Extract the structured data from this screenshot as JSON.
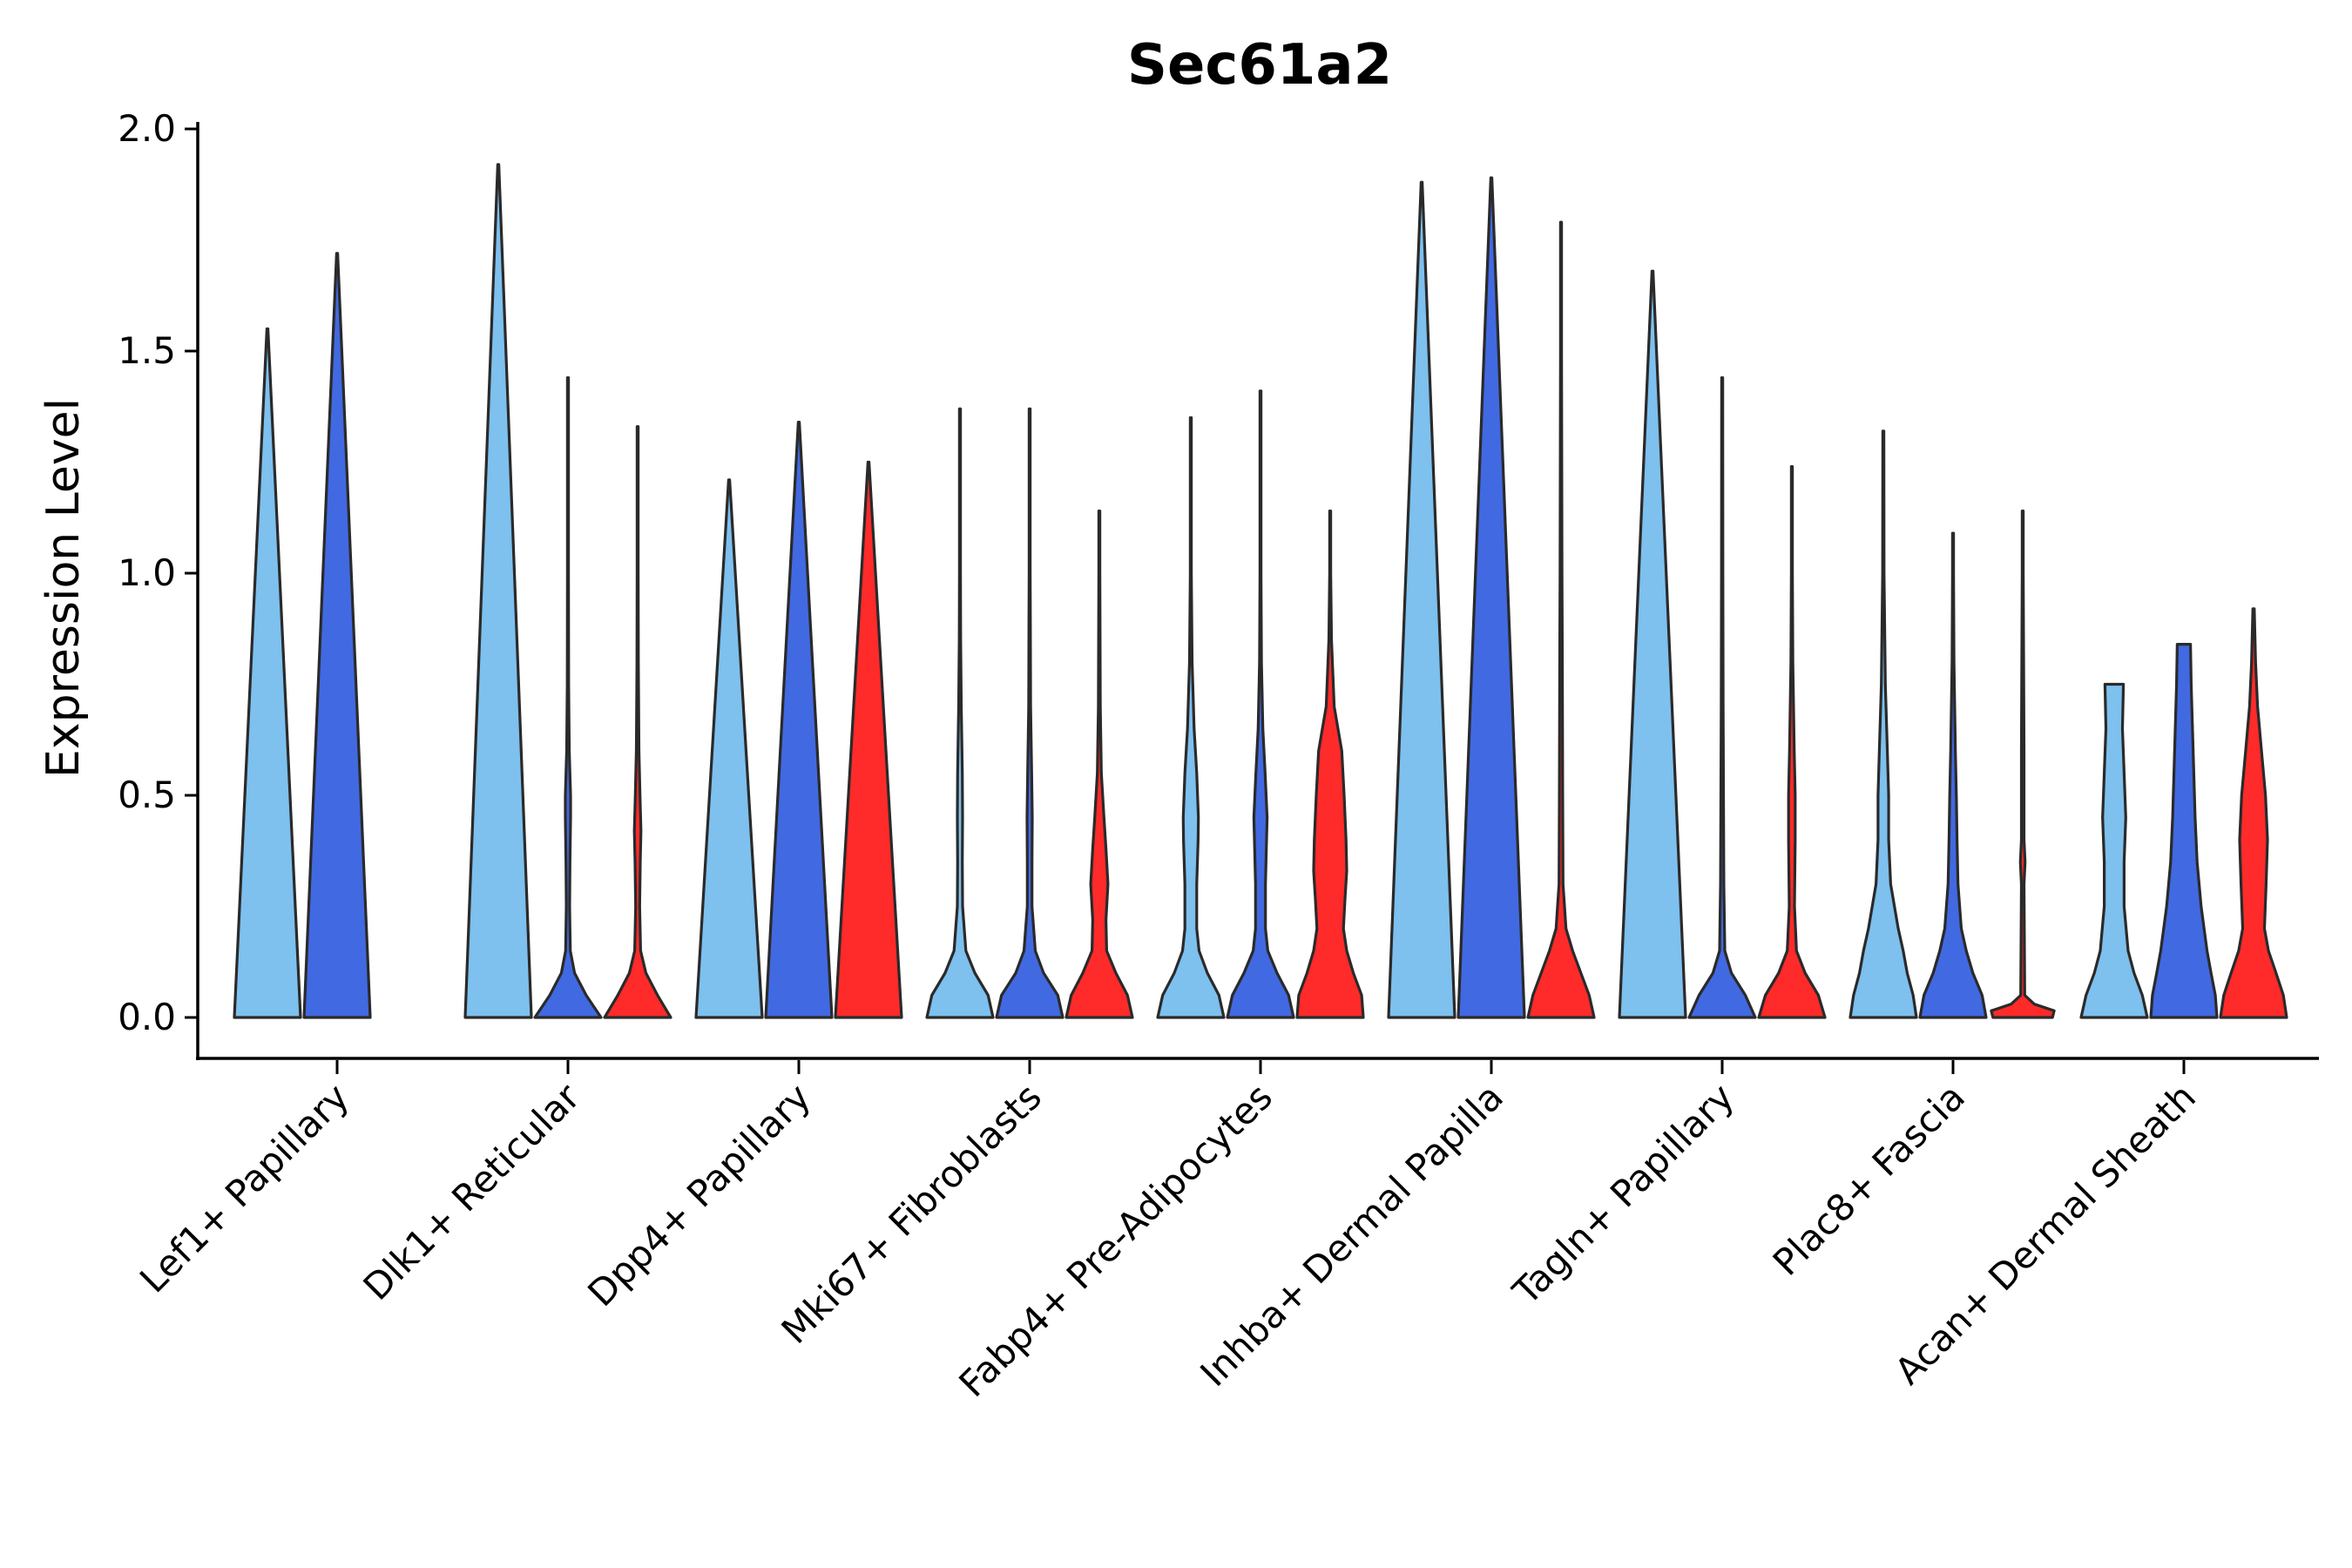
{
  "chart_data": {
    "type": "violin",
    "title": "Sec61a2",
    "xlabel": "",
    "ylabel": "Expression Level",
    "ylim": [
      -0.1,
      2.0
    ],
    "yticks": [
      0.0,
      0.5,
      1.0,
      1.5,
      2.0
    ],
    "ytick_labels": [
      "0.0",
      "0.5",
      "1.0",
      "1.5",
      "2.0"
    ],
    "grid": false,
    "legend": "none",
    "group_colors": [
      "#7ec0ee",
      "#4169e1",
      "#ff2a2a"
    ],
    "categories": [
      "Lef1+ Papillary",
      "Dlk1+ Reticular",
      "Dpp4+ Papillary",
      "Mki67+ Fibroblasts",
      "Fabp4+ Pre-Adipocytes",
      "Inhba+ Dermal Papilla",
      "Tagln+ Papillary",
      "Plac8+ Fascia",
      "Acan+ Dermal Sheath"
    ],
    "violins": [
      [
        {
          "max": 1.55,
          "profile": [
            [
              0.0,
              1.0
            ]
          ]
        },
        {
          "max": 1.72,
          "profile": [
            [
              0.0,
              1.0
            ]
          ]
        },
        null
      ],
      [
        {
          "max": 1.92,
          "profile": [
            [
              0.0,
              1.0
            ]
          ]
        },
        {
          "max": 1.44,
          "profile": [
            [
              0.0,
              1.0
            ],
            [
              0.05,
              0.55
            ],
            [
              0.1,
              0.2
            ],
            [
              0.15,
              0.07
            ],
            [
              0.25,
              0.05
            ],
            [
              0.35,
              0.06
            ],
            [
              0.45,
              0.08
            ],
            [
              0.5,
              0.08
            ],
            [
              0.6,
              0.04
            ],
            [
              0.75,
              0.02
            ],
            [
              1.0,
              0.015
            ]
          ]
        },
        {
          "max": 1.33,
          "profile": [
            [
              0.0,
              1.0
            ],
            [
              0.05,
              0.6
            ],
            [
              0.1,
              0.25
            ],
            [
              0.15,
              0.09
            ],
            [
              0.25,
              0.06
            ],
            [
              0.35,
              0.08
            ],
            [
              0.42,
              0.1
            ],
            [
              0.5,
              0.07
            ],
            [
              0.6,
              0.04
            ],
            [
              0.8,
              0.02
            ],
            [
              1.0,
              0.015
            ]
          ]
        }
      ],
      [
        {
          "max": 1.21,
          "profile": [
            [
              0.0,
              1.0
            ]
          ]
        },
        {
          "max": 1.34,
          "profile": [
            [
              0.0,
              1.0
            ]
          ]
        },
        {
          "max": 1.25,
          "profile": [
            [
              0.0,
              1.0
            ]
          ]
        }
      ],
      [
        {
          "max": 1.37,
          "profile": [
            [
              0.0,
              1.0
            ],
            [
              0.05,
              0.85
            ],
            [
              0.1,
              0.45
            ],
            [
              0.15,
              0.18
            ],
            [
              0.25,
              0.08
            ],
            [
              0.35,
              0.07
            ],
            [
              0.45,
              0.08
            ],
            [
              0.55,
              0.07
            ],
            [
              0.7,
              0.04
            ],
            [
              0.85,
              0.02
            ],
            [
              1.0,
              0.01
            ]
          ]
        },
        {
          "max": 1.37,
          "profile": [
            [
              0.0,
              1.0
            ],
            [
              0.05,
              0.85
            ],
            [
              0.1,
              0.42
            ],
            [
              0.15,
              0.17
            ],
            [
              0.25,
              0.07
            ],
            [
              0.35,
              0.07
            ],
            [
              0.45,
              0.08
            ],
            [
              0.55,
              0.06
            ],
            [
              0.7,
              0.03
            ],
            [
              0.9,
              0.02
            ],
            [
              1.0,
              0.01
            ]
          ]
        },
        {
          "max": 1.14,
          "profile": [
            [
              0.0,
              1.0
            ],
            [
              0.05,
              0.85
            ],
            [
              0.1,
              0.5
            ],
            [
              0.15,
              0.22
            ],
            [
              0.22,
              0.2
            ],
            [
              0.3,
              0.26
            ],
            [
              0.38,
              0.2
            ],
            [
              0.45,
              0.14
            ],
            [
              0.55,
              0.06
            ],
            [
              0.7,
              0.03
            ],
            [
              1.0,
              0.01
            ]
          ]
        }
      ],
      [
        {
          "max": 1.35,
          "profile": [
            [
              0.0,
              1.0
            ],
            [
              0.05,
              0.85
            ],
            [
              0.1,
              0.5
            ],
            [
              0.15,
              0.25
            ],
            [
              0.2,
              0.18
            ],
            [
              0.3,
              0.18
            ],
            [
              0.4,
              0.22
            ],
            [
              0.45,
              0.23
            ],
            [
              0.55,
              0.18
            ],
            [
              0.65,
              0.1
            ],
            [
              0.8,
              0.04
            ],
            [
              1.0,
              0.01
            ]
          ]
        },
        {
          "max": 1.41,
          "profile": [
            [
              0.0,
              1.0
            ],
            [
              0.05,
              0.85
            ],
            [
              0.1,
              0.5
            ],
            [
              0.15,
              0.22
            ],
            [
              0.2,
              0.15
            ],
            [
              0.3,
              0.15
            ],
            [
              0.45,
              0.2
            ],
            [
              0.55,
              0.14
            ],
            [
              0.65,
              0.07
            ],
            [
              0.8,
              0.03
            ],
            [
              1.0,
              0.01
            ]
          ]
        },
        {
          "max": 1.14,
          "profile": [
            [
              0.0,
              1.0
            ],
            [
              0.05,
              0.95
            ],
            [
              0.1,
              0.7
            ],
            [
              0.15,
              0.5
            ],
            [
              0.2,
              0.4
            ],
            [
              0.27,
              0.45
            ],
            [
              0.33,
              0.5
            ],
            [
              0.4,
              0.48
            ],
            [
              0.5,
              0.42
            ],
            [
              0.6,
              0.35
            ],
            [
              0.7,
              0.12
            ],
            [
              0.85,
              0.04
            ],
            [
              1.0,
              0.01
            ]
          ]
        }
      ],
      [
        {
          "max": 1.88,
          "profile": [
            [
              0.0,
              1.0
            ]
          ]
        },
        {
          "max": 1.89,
          "profile": [
            [
              0.0,
              1.0
            ]
          ]
        },
        {
          "max": 1.79,
          "profile": [
            [
              0.0,
              1.0
            ],
            [
              0.05,
              0.85
            ],
            [
              0.1,
              0.6
            ],
            [
              0.15,
              0.35
            ],
            [
              0.2,
              0.15
            ],
            [
              0.3,
              0.06
            ],
            [
              0.5,
              0.05
            ],
            [
              0.8,
              0.04
            ],
            [
              1.0,
              0.03
            ],
            [
              1.5,
              0.01
            ]
          ]
        }
      ],
      [
        {
          "max": 1.68,
          "profile": [
            [
              0.0,
              1.0
            ]
          ]
        },
        {
          "max": 1.44,
          "profile": [
            [
              0.0,
              1.0
            ],
            [
              0.05,
              0.7
            ],
            [
              0.1,
              0.28
            ],
            [
              0.15,
              0.08
            ],
            [
              0.3,
              0.05
            ],
            [
              0.5,
              0.04
            ],
            [
              0.7,
              0.03
            ],
            [
              1.0,
              0.02
            ]
          ]
        },
        {
          "max": 1.24,
          "profile": [
            [
              0.0,
              1.0
            ],
            [
              0.05,
              0.8
            ],
            [
              0.1,
              0.4
            ],
            [
              0.15,
              0.14
            ],
            [
              0.25,
              0.08
            ],
            [
              0.4,
              0.1
            ],
            [
              0.5,
              0.1
            ],
            [
              0.6,
              0.07
            ],
            [
              0.8,
              0.03
            ],
            [
              1.0,
              0.015
            ]
          ]
        }
      ],
      [
        {
          "max": 1.32,
          "profile": [
            [
              0.0,
              1.0
            ],
            [
              0.05,
              0.9
            ],
            [
              0.1,
              0.72
            ],
            [
              0.15,
              0.6
            ],
            [
              0.2,
              0.45
            ],
            [
              0.3,
              0.22
            ],
            [
              0.4,
              0.16
            ],
            [
              0.5,
              0.16
            ],
            [
              0.6,
              0.12
            ],
            [
              0.75,
              0.06
            ],
            [
              1.0,
              0.02
            ]
          ]
        },
        {
          "max": 1.09,
          "profile": [
            [
              0.0,
              1.0
            ],
            [
              0.05,
              0.88
            ],
            [
              0.1,
              0.6
            ],
            [
              0.15,
              0.4
            ],
            [
              0.2,
              0.25
            ],
            [
              0.3,
              0.15
            ],
            [
              0.4,
              0.12
            ],
            [
              0.5,
              0.1
            ],
            [
              0.6,
              0.07
            ],
            [
              0.8,
              0.03
            ],
            [
              1.0,
              0.01
            ]
          ]
        },
        {
          "max": 1.14,
          "profile": [
            [
              0.0,
              0.9
            ],
            [
              0.015,
              0.95
            ],
            [
              0.03,
              0.35
            ],
            [
              0.05,
              0.06
            ],
            [
              0.3,
              0.04
            ],
            [
              0.35,
              0.07
            ],
            [
              0.4,
              0.04
            ],
            [
              0.6,
              0.04
            ],
            [
              1.0,
              0.01
            ]
          ]
        }
      ],
      [
        {
          "max": 0.75,
          "profile": [
            [
              0.0,
              1.0
            ],
            [
              0.05,
              0.85
            ],
            [
              0.1,
              0.6
            ],
            [
              0.15,
              0.42
            ],
            [
              0.25,
              0.3
            ],
            [
              0.35,
              0.3
            ],
            [
              0.45,
              0.35
            ],
            [
              0.55,
              0.3
            ],
            [
              0.65,
              0.25
            ],
            [
              0.75,
              0.28
            ]
          ]
        },
        {
          "max": 0.84,
          "profile": [
            [
              0.0,
              1.0
            ],
            [
              0.05,
              0.95
            ],
            [
              0.1,
              0.82
            ],
            [
              0.15,
              0.7
            ],
            [
              0.25,
              0.52
            ],
            [
              0.35,
              0.4
            ],
            [
              0.45,
              0.34
            ],
            [
              0.55,
              0.3
            ],
            [
              0.65,
              0.26
            ],
            [
              0.75,
              0.22
            ],
            [
              0.84,
              0.2
            ]
          ]
        },
        {
          "max": 0.92,
          "profile": [
            [
              0.0,
              1.0
            ],
            [
              0.05,
              0.9
            ],
            [
              0.1,
              0.68
            ],
            [
              0.15,
              0.45
            ],
            [
              0.2,
              0.33
            ],
            [
              0.3,
              0.38
            ],
            [
              0.4,
              0.42
            ],
            [
              0.5,
              0.36
            ],
            [
              0.6,
              0.24
            ],
            [
              0.7,
              0.12
            ],
            [
              0.8,
              0.06
            ],
            [
              0.92,
              0.02
            ]
          ]
        }
      ]
    ]
  }
}
